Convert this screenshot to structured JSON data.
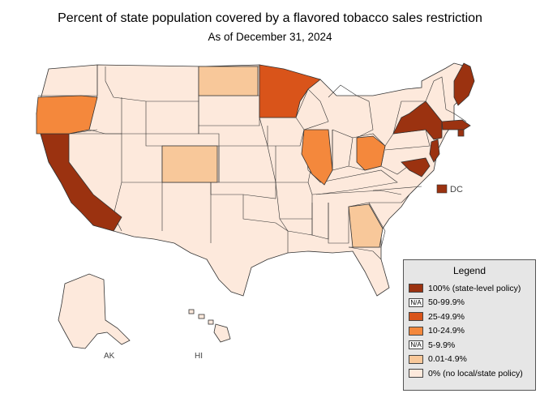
{
  "title": "Percent of state population covered by a flavored tobacco sales restriction",
  "subtitle": "As of December 31, 2024",
  "colors": {
    "c100": "#9b3210",
    "c25": "#d9541a",
    "c10": "#f4883c",
    "c001": "#f8c89a",
    "c0": "#fde9dc",
    "border": "#333333"
  },
  "legend": {
    "title": "Legend",
    "items": [
      {
        "label": "100% (state-level policy)",
        "color": "#9b3210",
        "swatch_text": ""
      },
      {
        "label": "50-99.9%",
        "color": "#ffffff",
        "swatch_text": "N/A"
      },
      {
        "label": "25-49.9%",
        "color": "#d9541a",
        "swatch_text": ""
      },
      {
        "label": "10-24.9%",
        "color": "#f4883c",
        "swatch_text": ""
      },
      {
        "label": "5-9.9%",
        "color": "#ffffff",
        "swatch_text": "N/A"
      },
      {
        "label": "0.01-4.9%",
        "color": "#f8c89a",
        "swatch_text": ""
      },
      {
        "label": "0% (no local/state policy)",
        "color": "#fde9dc",
        "swatch_text": ""
      }
    ]
  },
  "labels": {
    "ak": "AK",
    "hi": "HI",
    "dc": "DC"
  },
  "categories": {
    "100": [
      "CA",
      "NY",
      "MA",
      "RI",
      "NJ",
      "MD",
      "ME",
      "DC"
    ],
    "25": [
      "MN"
    ],
    "10": [
      "OR",
      "IL",
      "OH"
    ],
    "001": [
      "CO",
      "ND",
      "GA"
    ]
  }
}
